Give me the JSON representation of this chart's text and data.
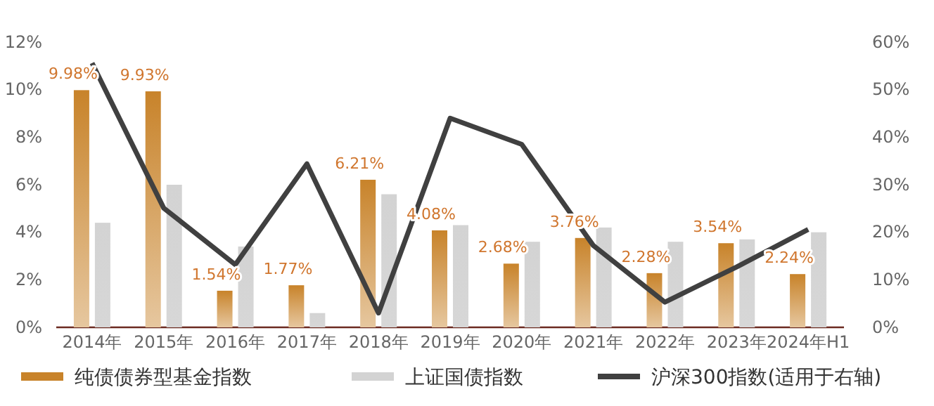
{
  "chart_data": {
    "type": "bar",
    "categories": [
      "2014年",
      "2015年",
      "2016年",
      "2017年",
      "2018年",
      "2019年",
      "2020年",
      "2021年",
      "2022年",
      "2023年",
      "2024年H1"
    ],
    "series": [
      {
        "name": "纯债债券型基金指数",
        "color": "#c8832a",
        "values": [
          9.98,
          9.93,
          1.54,
          1.77,
          6.21,
          4.08,
          2.68,
          3.76,
          2.28,
          3.54,
          2.24
        ],
        "value_labels": [
          "9.98%",
          "9.93%",
          "1.54%",
          "1.77%",
          "6.21%",
          "4.08%",
          "2.68%",
          "3.76%",
          "2.28%",
          "3.54%",
          "2.24%"
        ]
      },
      {
        "name": "上证国债指数",
        "color": "#d3d3d3",
        "values": [
          4.4,
          6.0,
          3.4,
          0.6,
          5.6,
          4.3,
          3.6,
          4.2,
          3.6,
          3.7,
          4.0
        ]
      },
      {
        "name": "沪深300指数(适用于右轴)",
        "type": "line",
        "axis": "y2",
        "color": "#404040",
        "values": [
          55.6,
          25.1,
          13.2,
          34.4,
          3.0,
          44.0,
          38.5,
          17.2,
          5.3,
          12.7,
          20.6
        ]
      }
    ],
    "ylim": [
      0,
      12
    ],
    "yticks": [
      {
        "value": 0,
        "label": "0%"
      },
      {
        "value": 2,
        "label": "2%"
      },
      {
        "value": 4,
        "label": "4%"
      },
      {
        "value": 6,
        "label": "6%"
      },
      {
        "value": 8,
        "label": "8%"
      },
      {
        "value": 10,
        "label": "10%"
      },
      {
        "value": 12,
        "label": "12%"
      }
    ],
    "y2lim": [
      0,
      60
    ],
    "y2ticks": [
      {
        "value": 0,
        "label": "0%"
      },
      {
        "value": 10,
        "label": "10%"
      },
      {
        "value": 20,
        "label": "20%"
      },
      {
        "value": 30,
        "label": "30%"
      },
      {
        "value": 40,
        "label": "40%"
      },
      {
        "value": 50,
        "label": "50%"
      },
      {
        "value": 60,
        "label": "60%"
      }
    ],
    "grid": false,
    "legend": "bottom",
    "marker": "none",
    "line_style": "solid"
  }
}
